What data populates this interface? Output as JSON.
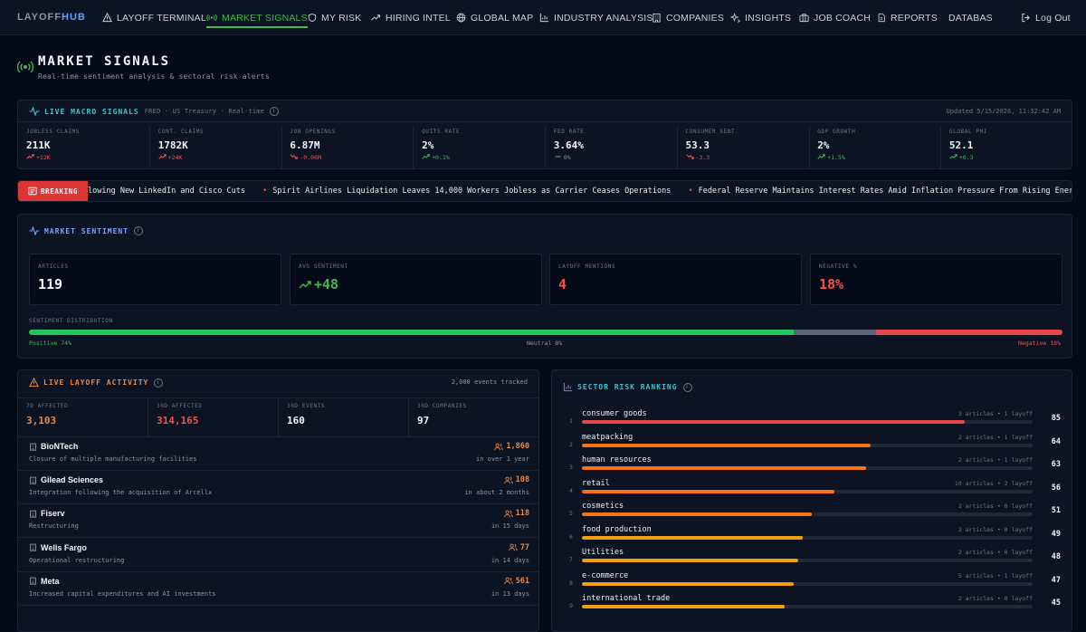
{
  "nav": {
    "brand_a": "LAYOFF",
    "brand_b": "HUB",
    "items": [
      "LAYOFF TERMINAL",
      "MARKET SIGNALS",
      "MY RISK",
      "HIRING INTEL",
      "GLOBAL MAP",
      "INDUSTRY ANALYSIS",
      "COMPANIES",
      "INSIGHTS",
      "JOB COACH",
      "REPORTS",
      "DATABAS"
    ],
    "active": "MARKET SIGNALS",
    "logout": "Log Out"
  },
  "page": {
    "title": "MARKET SIGNALS",
    "subtitle": "Real-time sentiment analysis & sectoral risk alerts"
  },
  "macro": {
    "title": "LIVE MACRO SIGNALS",
    "source": "FRED · US Treasury · Real-time",
    "updated": "Updated 5/15/2026, 11:32:42 AM",
    "cells": [
      {
        "label": "JOBLESS CLAIMS",
        "value": "211K",
        "delta": "+12K",
        "dir": "up",
        "color": "#f85149"
      },
      {
        "label": "CONT. CLAIMS",
        "value": "1782K",
        "delta": "+24K",
        "dir": "up",
        "color": "#f85149"
      },
      {
        "label": "JOB OPENINGS",
        "value": "6.87M",
        "delta": "-0.06M",
        "dir": "down",
        "color": "#f85149"
      },
      {
        "label": "QUITS RATE",
        "value": "2%",
        "delta": "+0.1%",
        "dir": "up",
        "color": "#3fb950"
      },
      {
        "label": "FED RATE",
        "value": "3.64%",
        "delta": "0%",
        "dir": "flat",
        "color": "#8b949e"
      },
      {
        "label": "CONSUMER SENT.",
        "value": "53.3",
        "delta": "-3.3",
        "dir": "down",
        "color": "#f85149"
      },
      {
        "label": "GDP GROWTH",
        "value": "2%",
        "delta": "+1.5%",
        "dir": "up",
        "color": "#3fb950"
      },
      {
        "label": "GLOBAL PMI",
        "value": "52.1",
        "delta": "+0.3",
        "dir": "up",
        "color": "#3fb950"
      }
    ]
  },
  "breaking": {
    "label": "BREAKING",
    "items": [
      "lowing New LinkedIn and Cisco Cuts",
      "Spirit Airlines Liquidation Leaves 14,000 Workers Jobless as Carrier Ceases Operations",
      "Federal Reserve Maintains Interest Rates Amid Inflation Pressure From Rising Energy Co"
    ]
  },
  "sentiment": {
    "title": "MARKET SENTIMENT",
    "cards": [
      {
        "label": "ARTICLES",
        "value": "119",
        "color": "#f0f6fc"
      },
      {
        "label": "AVG SENTIMENT",
        "value": "+48",
        "color": "#3fb950"
      },
      {
        "label": "LAYOFF MENTIONS",
        "value": "4",
        "color": "#f85149"
      },
      {
        "label": "NEGATIVE %",
        "value": "18%",
        "color": "#f85149"
      }
    ],
    "distribution_label": "SENTIMENT DISTRIBUTION",
    "segments": [
      {
        "name": "Positive",
        "pct": 74,
        "label": "Positive 74%",
        "color": "#22c55e",
        "text_color": "#3fb950"
      },
      {
        "name": "Neutral",
        "pct": 8,
        "label": "Neutral 8%",
        "color": "#5b6478",
        "text_color": "#8b949e"
      },
      {
        "name": "Negative",
        "pct": 18,
        "label": "Negative 18%",
        "color": "#e5484d",
        "text_color": "#f85149"
      }
    ]
  },
  "activity": {
    "title": "LIVE LAYOFF ACTIVITY",
    "events_tracked": "2,000 events tracked",
    "stats": [
      {
        "label": "7D AFFECTED",
        "value": "3,103",
        "color": "#f0883e"
      },
      {
        "label": "30D AFFECTED",
        "value": "314,165",
        "color": "#f85149"
      },
      {
        "label": "30D EVENTS",
        "value": "160",
        "color": "#f0f6fc"
      },
      {
        "label": "30D COMPANIES",
        "value": "97",
        "color": "#f0f6fc"
      }
    ],
    "rows": [
      {
        "company": "BioNTech",
        "desc": "Closure of multiple manufacturing facilities",
        "count": "1,860",
        "time": "in over 1 year"
      },
      {
        "company": "Gilead Sciences",
        "desc": "Integration following the acquisition of Arcellx",
        "count": "108",
        "time": "in about 2 months"
      },
      {
        "company": "Fiserv",
        "desc": "Restructuring",
        "count": "118",
        "time": "in 15 days"
      },
      {
        "company": "Wells Fargo",
        "desc": "Operational restructuring",
        "count": "77",
        "time": "in 14 days"
      },
      {
        "company": "Meta",
        "desc": "Increased capital expenditures and AI investments",
        "count": "561",
        "time": "in 13 days"
      }
    ]
  },
  "sector": {
    "title": "SECTOR RISK RANKING",
    "rows": [
      {
        "rank": "1",
        "name": "consumer goods",
        "meta": "3 articles • 1 layoff",
        "score": 85,
        "color": "#e5484d"
      },
      {
        "rank": "2",
        "name": "meatpacking",
        "meta": "2 articles • 1 layoff",
        "score": 64,
        "color": "#f97316"
      },
      {
        "rank": "3",
        "name": "human resources",
        "meta": "2 articles • 1 layoff",
        "score": 63,
        "color": "#f97316"
      },
      {
        "rank": "4",
        "name": "retail",
        "meta": "10 articles • 2 layoff",
        "score": 56,
        "color": "#f97316"
      },
      {
        "rank": "5",
        "name": "cosmetics",
        "meta": "2 articles • 0 layoff",
        "score": 51,
        "color": "#f97316"
      },
      {
        "rank": "6",
        "name": "food production",
        "meta": "2 articles • 0 layoff",
        "score": 49,
        "color": "#f59e0b"
      },
      {
        "rank": "7",
        "name": "Utilities",
        "meta": "2 articles • 0 layoff",
        "score": 48,
        "color": "#f59e0b"
      },
      {
        "rank": "8",
        "name": "e-commerce",
        "meta": "5 articles • 1 layoff",
        "score": 47,
        "color": "#f59e0b"
      },
      {
        "rank": "9",
        "name": "international trade",
        "meta": "2 articles • 0 layoff",
        "score": 45,
        "color": "#f59e0b"
      }
    ]
  }
}
